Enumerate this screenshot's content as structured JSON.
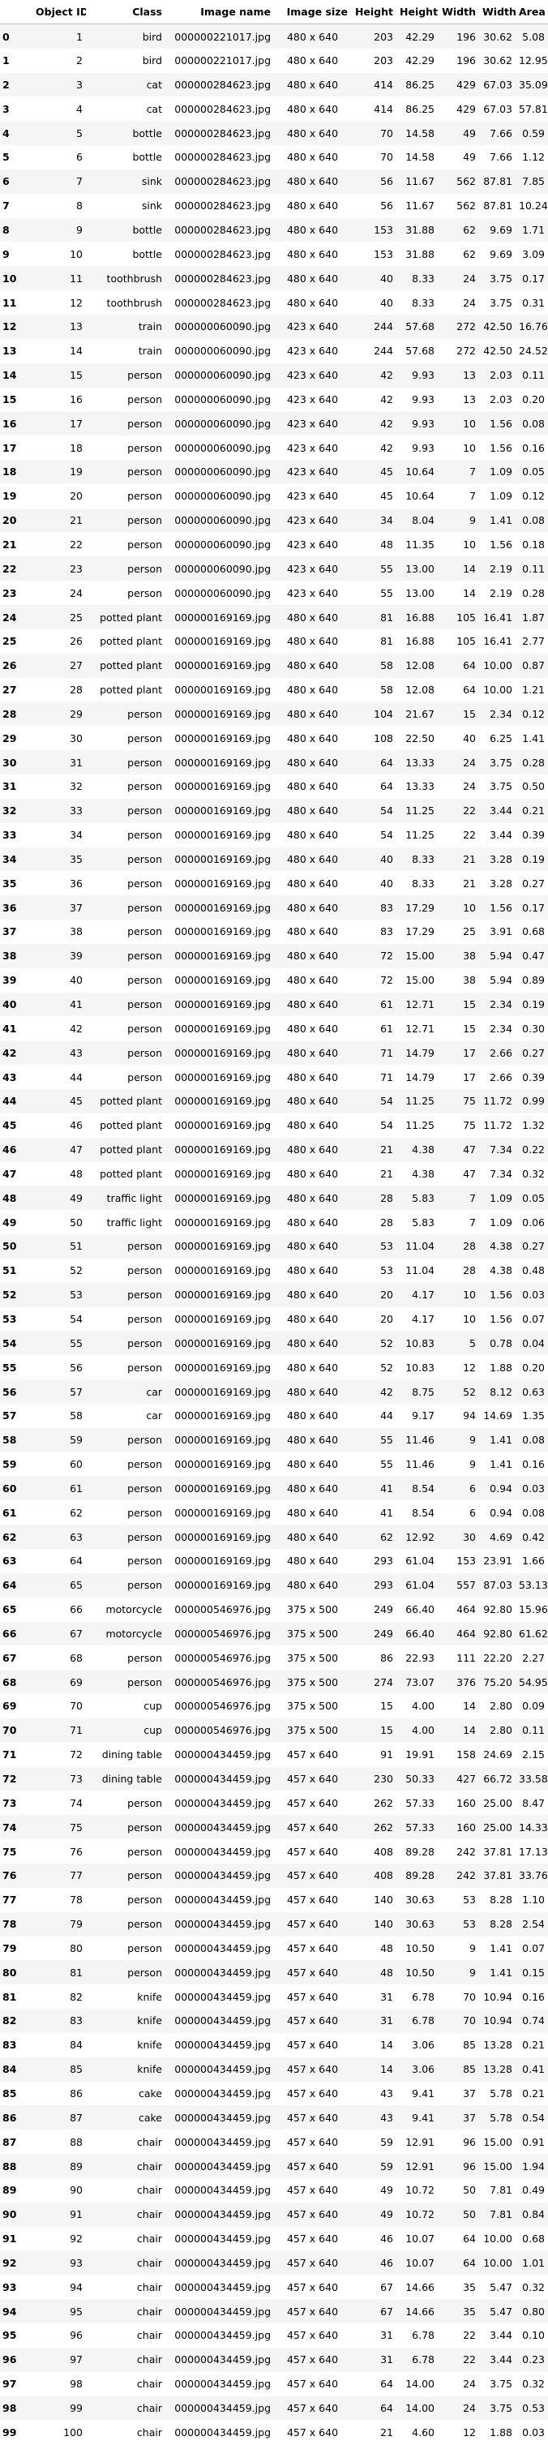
{
  "columns": [
    "",
    "Object ID",
    "Class",
    "Image name",
    "Image size",
    "Height",
    "Height",
    "Width",
    "Width",
    "Area"
  ],
  "rows": [
    [
      "0",
      "1",
      "bird",
      "000000221017.jpg",
      "480 x 640",
      "203",
      "42.29",
      "196",
      "30.62",
      "5.08"
    ],
    [
      "1",
      "2",
      "bird",
      "000000221017.jpg",
      "480 x 640",
      "203",
      "42.29",
      "196",
      "30.62",
      "12.95"
    ],
    [
      "2",
      "3",
      "cat",
      "000000284623.jpg",
      "480 x 640",
      "414",
      "86.25",
      "429",
      "67.03",
      "35.09"
    ],
    [
      "3",
      "4",
      "cat",
      "000000284623.jpg",
      "480 x 640",
      "414",
      "86.25",
      "429",
      "67.03",
      "57.81"
    ],
    [
      "4",
      "5",
      "bottle",
      "000000284623.jpg",
      "480 x 640",
      "70",
      "14.58",
      "49",
      "7.66",
      "0.59"
    ],
    [
      "5",
      "6",
      "bottle",
      "000000284623.jpg",
      "480 x 640",
      "70",
      "14.58",
      "49",
      "7.66",
      "1.12"
    ],
    [
      "6",
      "7",
      "sink",
      "000000284623.jpg",
      "480 x 640",
      "56",
      "11.67",
      "562",
      "87.81",
      "7.85"
    ],
    [
      "7",
      "8",
      "sink",
      "000000284623.jpg",
      "480 x 640",
      "56",
      "11.67",
      "562",
      "87.81",
      "10.24"
    ],
    [
      "8",
      "9",
      "bottle",
      "000000284623.jpg",
      "480 x 640",
      "153",
      "31.88",
      "62",
      "9.69",
      "1.71"
    ],
    [
      "9",
      "10",
      "bottle",
      "000000284623.jpg",
      "480 x 640",
      "153",
      "31.88",
      "62",
      "9.69",
      "3.09"
    ],
    [
      "10",
      "11",
      "toothbrush",
      "000000284623.jpg",
      "480 x 640",
      "40",
      "8.33",
      "24",
      "3.75",
      "0.17"
    ],
    [
      "11",
      "12",
      "toothbrush",
      "000000284623.jpg",
      "480 x 640",
      "40",
      "8.33",
      "24",
      "3.75",
      "0.31"
    ],
    [
      "12",
      "13",
      "train",
      "000000060090.jpg",
      "423 x 640",
      "244",
      "57.68",
      "272",
      "42.50",
      "16.76"
    ],
    [
      "13",
      "14",
      "train",
      "000000060090.jpg",
      "423 x 640",
      "244",
      "57.68",
      "272",
      "42.50",
      "24.52"
    ],
    [
      "14",
      "15",
      "person",
      "000000060090.jpg",
      "423 x 640",
      "42",
      "9.93",
      "13",
      "2.03",
      "0.11"
    ],
    [
      "15",
      "16",
      "person",
      "000000060090.jpg",
      "423 x 640",
      "42",
      "9.93",
      "13",
      "2.03",
      "0.20"
    ],
    [
      "16",
      "17",
      "person",
      "000000060090.jpg",
      "423 x 640",
      "42",
      "9.93",
      "10",
      "1.56",
      "0.08"
    ],
    [
      "17",
      "18",
      "person",
      "000000060090.jpg",
      "423 x 640",
      "42",
      "9.93",
      "10",
      "1.56",
      "0.16"
    ],
    [
      "18",
      "19",
      "person",
      "000000060090.jpg",
      "423 x 640",
      "45",
      "10.64",
      "7",
      "1.09",
      "0.05"
    ],
    [
      "19",
      "20",
      "person",
      "000000060090.jpg",
      "423 x 640",
      "45",
      "10.64",
      "7",
      "1.09",
      "0.12"
    ],
    [
      "20",
      "21",
      "person",
      "000000060090.jpg",
      "423 x 640",
      "34",
      "8.04",
      "9",
      "1.41",
      "0.08"
    ],
    [
      "21",
      "22",
      "person",
      "000000060090.jpg",
      "423 x 640",
      "48",
      "11.35",
      "10",
      "1.56",
      "0.18"
    ],
    [
      "22",
      "23",
      "person",
      "000000060090.jpg",
      "423 x 640",
      "55",
      "13.00",
      "14",
      "2.19",
      "0.11"
    ],
    [
      "23",
      "24",
      "person",
      "000000060090.jpg",
      "423 x 640",
      "55",
      "13.00",
      "14",
      "2.19",
      "0.28"
    ],
    [
      "24",
      "25",
      "potted plant",
      "000000169169.jpg",
      "480 x 640",
      "81",
      "16.88",
      "105",
      "16.41",
      "1.87"
    ],
    [
      "25",
      "26",
      "potted plant",
      "000000169169.jpg",
      "480 x 640",
      "81",
      "16.88",
      "105",
      "16.41",
      "2.77"
    ],
    [
      "26",
      "27",
      "potted plant",
      "000000169169.jpg",
      "480 x 640",
      "58",
      "12.08",
      "64",
      "10.00",
      "0.87"
    ],
    [
      "27",
      "28",
      "potted plant",
      "000000169169.jpg",
      "480 x 640",
      "58",
      "12.08",
      "64",
      "10.00",
      "1.21"
    ],
    [
      "28",
      "29",
      "person",
      "000000169169.jpg",
      "480 x 640",
      "104",
      "21.67",
      "15",
      "2.34",
      "0.12"
    ],
    [
      "29",
      "30",
      "person",
      "000000169169.jpg",
      "480 x 640",
      "108",
      "22.50",
      "40",
      "6.25",
      "1.41"
    ],
    [
      "30",
      "31",
      "person",
      "000000169169.jpg",
      "480 x 640",
      "64",
      "13.33",
      "24",
      "3.75",
      "0.28"
    ],
    [
      "31",
      "32",
      "person",
      "000000169169.jpg",
      "480 x 640",
      "64",
      "13.33",
      "24",
      "3.75",
      "0.50"
    ],
    [
      "32",
      "33",
      "person",
      "000000169169.jpg",
      "480 x 640",
      "54",
      "11.25",
      "22",
      "3.44",
      "0.21"
    ],
    [
      "33",
      "34",
      "person",
      "000000169169.jpg",
      "480 x 640",
      "54",
      "11.25",
      "22",
      "3.44",
      "0.39"
    ],
    [
      "34",
      "35",
      "person",
      "000000169169.jpg",
      "480 x 640",
      "40",
      "8.33",
      "21",
      "3.28",
      "0.19"
    ],
    [
      "35",
      "36",
      "person",
      "000000169169.jpg",
      "480 x 640",
      "40",
      "8.33",
      "21",
      "3.28",
      "0.27"
    ],
    [
      "36",
      "37",
      "person",
      "000000169169.jpg",
      "480 x 640",
      "83",
      "17.29",
      "10",
      "1.56",
      "0.17"
    ],
    [
      "37",
      "38",
      "person",
      "000000169169.jpg",
      "480 x 640",
      "83",
      "17.29",
      "25",
      "3.91",
      "0.68"
    ],
    [
      "38",
      "39",
      "person",
      "000000169169.jpg",
      "480 x 640",
      "72",
      "15.00",
      "38",
      "5.94",
      "0.47"
    ],
    [
      "39",
      "40",
      "person",
      "000000169169.jpg",
      "480 x 640",
      "72",
      "15.00",
      "38",
      "5.94",
      "0.89"
    ],
    [
      "40",
      "41",
      "person",
      "000000169169.jpg",
      "480 x 640",
      "61",
      "12.71",
      "15",
      "2.34",
      "0.19"
    ],
    [
      "41",
      "42",
      "person",
      "000000169169.jpg",
      "480 x 640",
      "61",
      "12.71",
      "15",
      "2.34",
      "0.30"
    ],
    [
      "42",
      "43",
      "person",
      "000000169169.jpg",
      "480 x 640",
      "71",
      "14.79",
      "17",
      "2.66",
      "0.27"
    ],
    [
      "43",
      "44",
      "person",
      "000000169169.jpg",
      "480 x 640",
      "71",
      "14.79",
      "17",
      "2.66",
      "0.39"
    ],
    [
      "44",
      "45",
      "potted plant",
      "000000169169.jpg",
      "480 x 640",
      "54",
      "11.25",
      "75",
      "11.72",
      "0.99"
    ],
    [
      "45",
      "46",
      "potted plant",
      "000000169169.jpg",
      "480 x 640",
      "54",
      "11.25",
      "75",
      "11.72",
      "1.32"
    ],
    [
      "46",
      "47",
      "potted plant",
      "000000169169.jpg",
      "480 x 640",
      "21",
      "4.38",
      "47",
      "7.34",
      "0.22"
    ],
    [
      "47",
      "48",
      "potted plant",
      "000000169169.jpg",
      "480 x 640",
      "21",
      "4.38",
      "47",
      "7.34",
      "0.32"
    ],
    [
      "48",
      "49",
      "traffic light",
      "000000169169.jpg",
      "480 x 640",
      "28",
      "5.83",
      "7",
      "1.09",
      "0.05"
    ],
    [
      "49",
      "50",
      "traffic light",
      "000000169169.jpg",
      "480 x 640",
      "28",
      "5.83",
      "7",
      "1.09",
      "0.06"
    ],
    [
      "50",
      "51",
      "person",
      "000000169169.jpg",
      "480 x 640",
      "53",
      "11.04",
      "28",
      "4.38",
      "0.27"
    ],
    [
      "51",
      "52",
      "person",
      "000000169169.jpg",
      "480 x 640",
      "53",
      "11.04",
      "28",
      "4.38",
      "0.48"
    ],
    [
      "52",
      "53",
      "person",
      "000000169169.jpg",
      "480 x 640",
      "20",
      "4.17",
      "10",
      "1.56",
      "0.03"
    ],
    [
      "53",
      "54",
      "person",
      "000000169169.jpg",
      "480 x 640",
      "20",
      "4.17",
      "10",
      "1.56",
      "0.07"
    ],
    [
      "54",
      "55",
      "person",
      "000000169169.jpg",
      "480 x 640",
      "52",
      "10.83",
      "5",
      "0.78",
      "0.04"
    ],
    [
      "55",
      "56",
      "person",
      "000000169169.jpg",
      "480 x 640",
      "52",
      "10.83",
      "12",
      "1.88",
      "0.20"
    ],
    [
      "56",
      "57",
      "car",
      "000000169169.jpg",
      "480 x 640",
      "42",
      "8.75",
      "52",
      "8.12",
      "0.63"
    ],
    [
      "57",
      "58",
      "car",
      "000000169169.jpg",
      "480 x 640",
      "44",
      "9.17",
      "94",
      "14.69",
      "1.35"
    ],
    [
      "58",
      "59",
      "person",
      "000000169169.jpg",
      "480 x 640",
      "55",
      "11.46",
      "9",
      "1.41",
      "0.08"
    ],
    [
      "59",
      "60",
      "person",
      "000000169169.jpg",
      "480 x 640",
      "55",
      "11.46",
      "9",
      "1.41",
      "0.16"
    ],
    [
      "60",
      "61",
      "person",
      "000000169169.jpg",
      "480 x 640",
      "41",
      "8.54",
      "6",
      "0.94",
      "0.03"
    ],
    [
      "61",
      "62",
      "person",
      "000000169169.jpg",
      "480 x 640",
      "41",
      "8.54",
      "6",
      "0.94",
      "0.08"
    ],
    [
      "62",
      "63",
      "person",
      "000000169169.jpg",
      "480 x 640",
      "62",
      "12.92",
      "30",
      "4.69",
      "0.42"
    ],
    [
      "63",
      "64",
      "person",
      "000000169169.jpg",
      "480 x 640",
      "293",
      "61.04",
      "153",
      "23.91",
      "1.66"
    ],
    [
      "64",
      "65",
      "person",
      "000000169169.jpg",
      "480 x 640",
      "293",
      "61.04",
      "557",
      "87.03",
      "53.13"
    ],
    [
      "65",
      "66",
      "motorcycle",
      "000000546976.jpg",
      "375 x 500",
      "249",
      "66.40",
      "464",
      "92.80",
      "15.96"
    ],
    [
      "66",
      "67",
      "motorcycle",
      "000000546976.jpg",
      "375 x 500",
      "249",
      "66.40",
      "464",
      "92.80",
      "61.62"
    ],
    [
      "67",
      "68",
      "person",
      "000000546976.jpg",
      "375 x 500",
      "86",
      "22.93",
      "111",
      "22.20",
      "2.27"
    ],
    [
      "68",
      "69",
      "person",
      "000000546976.jpg",
      "375 x 500",
      "274",
      "73.07",
      "376",
      "75.20",
      "54.95"
    ],
    [
      "69",
      "70",
      "cup",
      "000000546976.jpg",
      "375 x 500",
      "15",
      "4.00",
      "14",
      "2.80",
      "0.09"
    ],
    [
      "70",
      "71",
      "cup",
      "000000546976.jpg",
      "375 x 500",
      "15",
      "4.00",
      "14",
      "2.80",
      "0.11"
    ],
    [
      "71",
      "72",
      "dining table",
      "000000434459.jpg",
      "457 x 640",
      "91",
      "19.91",
      "158",
      "24.69",
      "2.15"
    ],
    [
      "72",
      "73",
      "dining table",
      "000000434459.jpg",
      "457 x 640",
      "230",
      "50.33",
      "427",
      "66.72",
      "33.58"
    ],
    [
      "73",
      "74",
      "person",
      "000000434459.jpg",
      "457 x 640",
      "262",
      "57.33",
      "160",
      "25.00",
      "8.47"
    ],
    [
      "74",
      "75",
      "person",
      "000000434459.jpg",
      "457 x 640",
      "262",
      "57.33",
      "160",
      "25.00",
      "14.33"
    ],
    [
      "75",
      "76",
      "person",
      "000000434459.jpg",
      "457 x 640",
      "408",
      "89.28",
      "242",
      "37.81",
      "17.13"
    ],
    [
      "76",
      "77",
      "person",
      "000000434459.jpg",
      "457 x 640",
      "408",
      "89.28",
      "242",
      "37.81",
      "33.76"
    ],
    [
      "77",
      "78",
      "person",
      "000000434459.jpg",
      "457 x 640",
      "140",
      "30.63",
      "53",
      "8.28",
      "1.10"
    ],
    [
      "78",
      "79",
      "person",
      "000000434459.jpg",
      "457 x 640",
      "140",
      "30.63",
      "53",
      "8.28",
      "2.54"
    ],
    [
      "79",
      "80",
      "person",
      "000000434459.jpg",
      "457 x 640",
      "48",
      "10.50",
      "9",
      "1.41",
      "0.07"
    ],
    [
      "80",
      "81",
      "person",
      "000000434459.jpg",
      "457 x 640",
      "48",
      "10.50",
      "9",
      "1.41",
      "0.15"
    ],
    [
      "81",
      "82",
      "knife",
      "000000434459.jpg",
      "457 x 640",
      "31",
      "6.78",
      "70",
      "10.94",
      "0.16"
    ],
    [
      "82",
      "83",
      "knife",
      "000000434459.jpg",
      "457 x 640",
      "31",
      "6.78",
      "70",
      "10.94",
      "0.74"
    ],
    [
      "83",
      "84",
      "knife",
      "000000434459.jpg",
      "457 x 640",
      "14",
      "3.06",
      "85",
      "13.28",
      "0.21"
    ],
    [
      "84",
      "85",
      "knife",
      "000000434459.jpg",
      "457 x 640",
      "14",
      "3.06",
      "85",
      "13.28",
      "0.41"
    ],
    [
      "85",
      "86",
      "cake",
      "000000434459.jpg",
      "457 x 640",
      "43",
      "9.41",
      "37",
      "5.78",
      "0.21"
    ],
    [
      "86",
      "87",
      "cake",
      "000000434459.jpg",
      "457 x 640",
      "43",
      "9.41",
      "37",
      "5.78",
      "0.54"
    ],
    [
      "87",
      "88",
      "chair",
      "000000434459.jpg",
      "457 x 640",
      "59",
      "12.91",
      "96",
      "15.00",
      "0.91"
    ],
    [
      "88",
      "89",
      "chair",
      "000000434459.jpg",
      "457 x 640",
      "59",
      "12.91",
      "96",
      "15.00",
      "1.94"
    ],
    [
      "89",
      "90",
      "chair",
      "000000434459.jpg",
      "457 x 640",
      "49",
      "10.72",
      "50",
      "7.81",
      "0.49"
    ],
    [
      "90",
      "91",
      "chair",
      "000000434459.jpg",
      "457 x 640",
      "49",
      "10.72",
      "50",
      "7.81",
      "0.84"
    ],
    [
      "91",
      "92",
      "chair",
      "000000434459.jpg",
      "457 x 640",
      "46",
      "10.07",
      "64",
      "10.00",
      "0.68"
    ],
    [
      "92",
      "93",
      "chair",
      "000000434459.jpg",
      "457 x 640",
      "46",
      "10.07",
      "64",
      "10.00",
      "1.01"
    ],
    [
      "93",
      "94",
      "chair",
      "000000434459.jpg",
      "457 x 640",
      "67",
      "14.66",
      "35",
      "5.47",
      "0.32"
    ],
    [
      "94",
      "95",
      "chair",
      "000000434459.jpg",
      "457 x 640",
      "67",
      "14.66",
      "35",
      "5.47",
      "0.80"
    ],
    [
      "95",
      "96",
      "chair",
      "000000434459.jpg",
      "457 x 640",
      "31",
      "6.78",
      "22",
      "3.44",
      "0.10"
    ],
    [
      "96",
      "97",
      "chair",
      "000000434459.jpg",
      "457 x 640",
      "31",
      "6.78",
      "22",
      "3.44",
      "0.23"
    ],
    [
      "97",
      "98",
      "chair",
      "000000434459.jpg",
      "457 x 640",
      "64",
      "14.00",
      "24",
      "3.75",
      "0.32"
    ],
    [
      "98",
      "99",
      "chair",
      "000000434459.jpg",
      "457 x 640",
      "64",
      "14.00",
      "24",
      "3.75",
      "0.53"
    ],
    [
      "99",
      "100",
      "chair",
      "000000434459.jpg",
      "457 x 640",
      "21",
      "4.60",
      "12",
      "1.88",
      "0.03"
    ]
  ]
}
